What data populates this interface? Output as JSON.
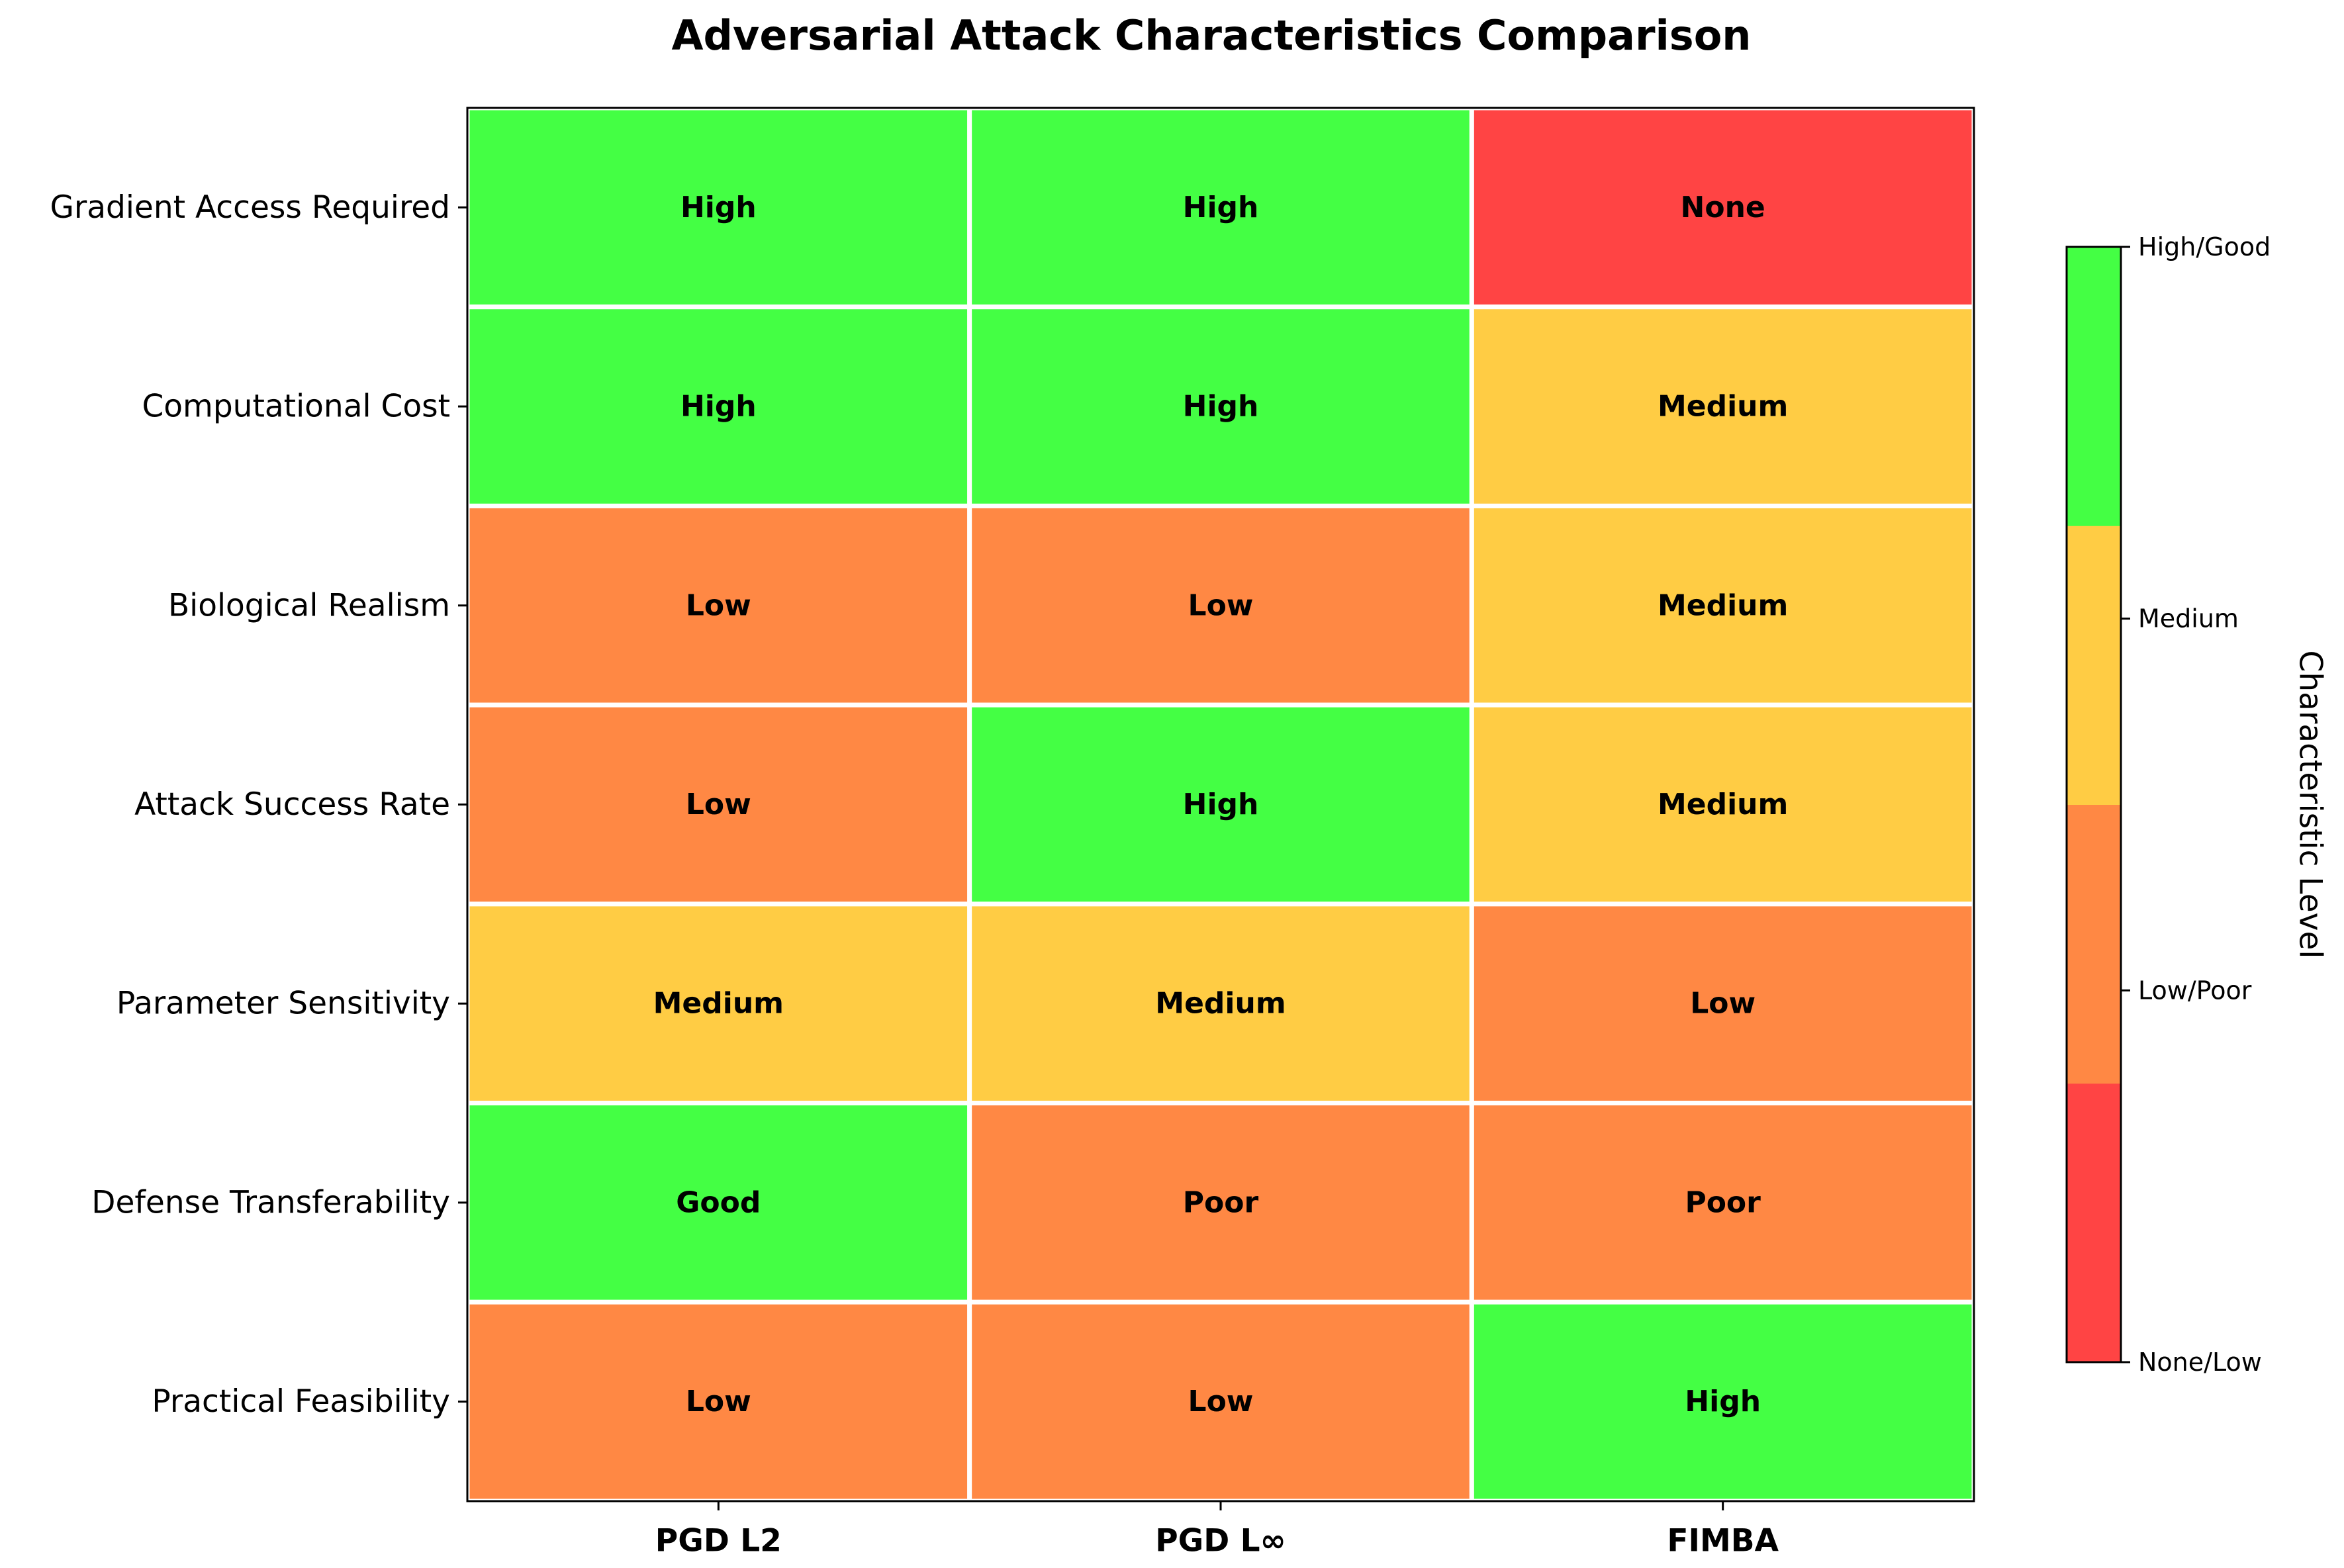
{
  "chart_data": {
    "type": "heatmap",
    "title": "Adversarial Attack Characteristics Comparison",
    "columns": [
      "PGD L2",
      "PGD L∞",
      "FIMBA"
    ],
    "rows": [
      "Gradient Access Required",
      "Computational Cost",
      "Biological Realism",
      "Attack Success Rate",
      "Parameter Sensitivity",
      "Defense Transferability",
      "Practical Feasibility"
    ],
    "cells": [
      [
        {
          "label": "High",
          "level": 3
        },
        {
          "label": "High",
          "level": 3
        },
        {
          "label": "None",
          "level": 0
        }
      ],
      [
        {
          "label": "High",
          "level": 3
        },
        {
          "label": "High",
          "level": 3
        },
        {
          "label": "Medium",
          "level": 2
        }
      ],
      [
        {
          "label": "Low",
          "level": 1
        },
        {
          "label": "Low",
          "level": 1
        },
        {
          "label": "Medium",
          "level": 2
        }
      ],
      [
        {
          "label": "Low",
          "level": 1
        },
        {
          "label": "High",
          "level": 3
        },
        {
          "label": "Medium",
          "level": 2
        }
      ],
      [
        {
          "label": "Medium",
          "level": 2
        },
        {
          "label": "Medium",
          "level": 2
        },
        {
          "label": "Low",
          "level": 1
        }
      ],
      [
        {
          "label": "Good",
          "level": 3
        },
        {
          "label": "Poor",
          "level": 1
        },
        {
          "label": "Poor",
          "level": 1
        }
      ],
      [
        {
          "label": "Low",
          "level": 1
        },
        {
          "label": "Low",
          "level": 1
        },
        {
          "label": "High",
          "level": 3
        }
      ]
    ],
    "colormap": {
      "levels": [
        0,
        1,
        2,
        3
      ],
      "colors": [
        "#ff4444",
        "#ff8844",
        "#ffcc44",
        "#44ff44"
      ]
    },
    "colorbar": {
      "label": "Characteristic Level",
      "ticks": [
        {
          "value": 0,
          "label": "None/Low"
        },
        {
          "value": 1,
          "label": "Low/Poor"
        },
        {
          "value": 2,
          "label": "Medium"
        },
        {
          "value": 3,
          "label": "High/Good"
        }
      ],
      "range": [
        0,
        3
      ]
    },
    "grid": false,
    "legend": "right"
  }
}
